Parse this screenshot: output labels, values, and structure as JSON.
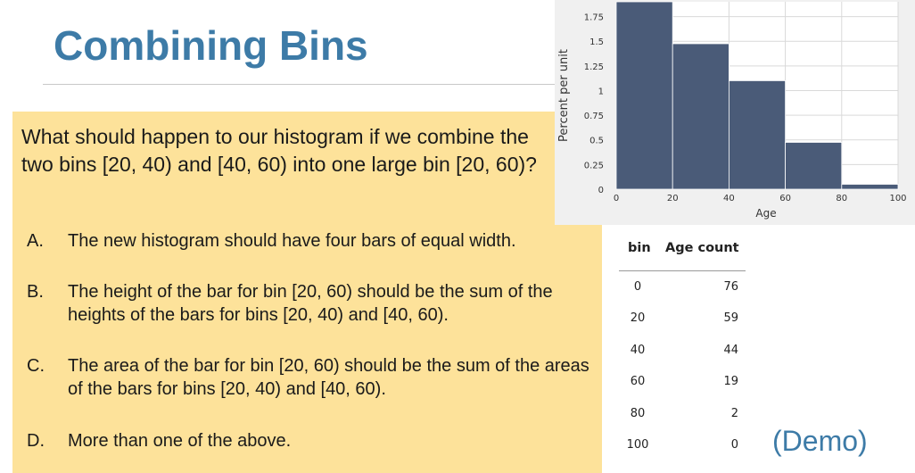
{
  "slide": {
    "title": "Combining Bins",
    "question": "What should happen to our histogram if we combine the two bins [20, 40) and [40, 60) into one large bin [20, 60)?",
    "options": [
      {
        "letter": "A.",
        "text": "The new histogram should have four bars of equal width."
      },
      {
        "letter": "B.",
        "text": "The height of the bar for bin [20, 60) should be the sum of the heights of the bars for bins [20, 40) and [40, 60)."
      },
      {
        "letter": "C.",
        "text": "The area of the bar for bin [20, 60) should be the sum of the areas of the bars for bins [20, 40) and [40, 60)."
      },
      {
        "letter": "D.",
        "text": "More than one of the above."
      }
    ],
    "demo_label": "(Demo)"
  },
  "table": {
    "headers": [
      "bin",
      "Age count"
    ],
    "rows": [
      [
        "0",
        "76"
      ],
      [
        "20",
        "59"
      ],
      [
        "40",
        "44"
      ],
      [
        "60",
        "19"
      ],
      [
        "80",
        "2"
      ],
      [
        "100",
        "0"
      ]
    ]
  },
  "chart_data": {
    "type": "bar",
    "xlabel": "Age",
    "ylabel": "Percent per unit",
    "bins": [
      [
        0,
        20
      ],
      [
        20,
        40
      ],
      [
        40,
        60
      ],
      [
        60,
        80
      ],
      [
        80,
        100
      ]
    ],
    "values": [
      1.9,
      1.475,
      1.1,
      0.475,
      0.05
    ],
    "xticks": [
      "0",
      "20",
      "40",
      "60",
      "80",
      "100"
    ],
    "yticks": [
      "0",
      "0.25",
      "0.5",
      "0.75",
      "1",
      "1.25",
      "1.5",
      "1.75"
    ],
    "xlim": [
      0,
      100
    ],
    "ylim": [
      0,
      1.9
    ],
    "bar_color": "#4a5b78",
    "grid": true
  }
}
